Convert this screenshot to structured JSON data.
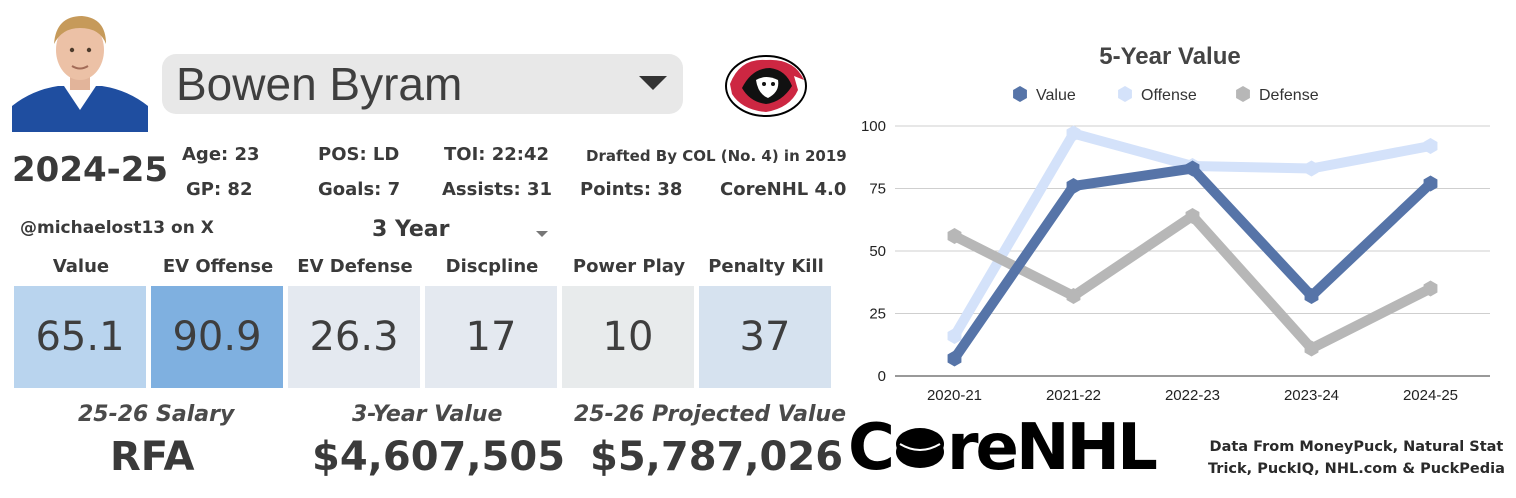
{
  "player": {
    "name": "Bowen Byram",
    "season": "2024-25",
    "stats_row1": [
      "Age: 23",
      "POS: LD",
      "TOI: 22:42",
      "Drafted By COL (No. 4) in 2019"
    ],
    "stats_row2": [
      "GP: 82",
      "Goals: 7",
      "Assists: 31",
      "Points: 38",
      "CoreNHL 4.0"
    ]
  },
  "handle": "@michaelost13 on X",
  "period": "3 Year",
  "ratings": [
    {
      "label": "Value",
      "value": "65.1",
      "color": "#b9d4ee"
    },
    {
      "label": "EV Offense",
      "value": "90.9",
      "color": "#7fb0e0"
    },
    {
      "label": "EV Defense",
      "value": "26.3",
      "color": "#e4e9f0"
    },
    {
      "label": "Discpline",
      "value": "17",
      "color": "#e4e9f0"
    },
    {
      "label": "Power Play",
      "value": "10",
      "color": "#e8ebec"
    },
    {
      "label": "Penalty Kill",
      "value": "37",
      "color": "#d6e2ef"
    }
  ],
  "footer": {
    "salary_label": "25-26 Salary",
    "salary_value": "RFA",
    "three_year_label": "3-Year Value",
    "three_year_value": "$4,607,505",
    "projected_label": "25-26 Projected Value",
    "projected_value": "$5,787,026"
  },
  "brand": {
    "logo_text_pre": "C",
    "logo_text_post": "reNHL",
    "credit_line1": "Data From MoneyPuck, Natural Stat",
    "credit_line2": "Trick, PuckIQ, NHL.com & PuckPedia"
  },
  "chart_data": {
    "type": "line",
    "title": "5-Year Value",
    "categories": [
      "2020-21",
      "2021-22",
      "2022-23",
      "2023-24",
      "2024-25"
    ],
    "series": [
      {
        "name": "Value",
        "values": [
          7,
          76,
          83,
          32,
          77
        ],
        "color": "#5674a8"
      },
      {
        "name": "Offense",
        "values": [
          16,
          97,
          84,
          83,
          92
        ],
        "color": "#d4e2fa"
      },
      {
        "name": "Defense",
        "values": [
          56,
          32,
          64,
          11,
          35
        ],
        "color": "#b7b7b7"
      }
    ],
    "ylim": [
      0,
      100
    ],
    "yticks": [
      0,
      25,
      50,
      75,
      100
    ],
    "grid": true,
    "legend": "top"
  }
}
